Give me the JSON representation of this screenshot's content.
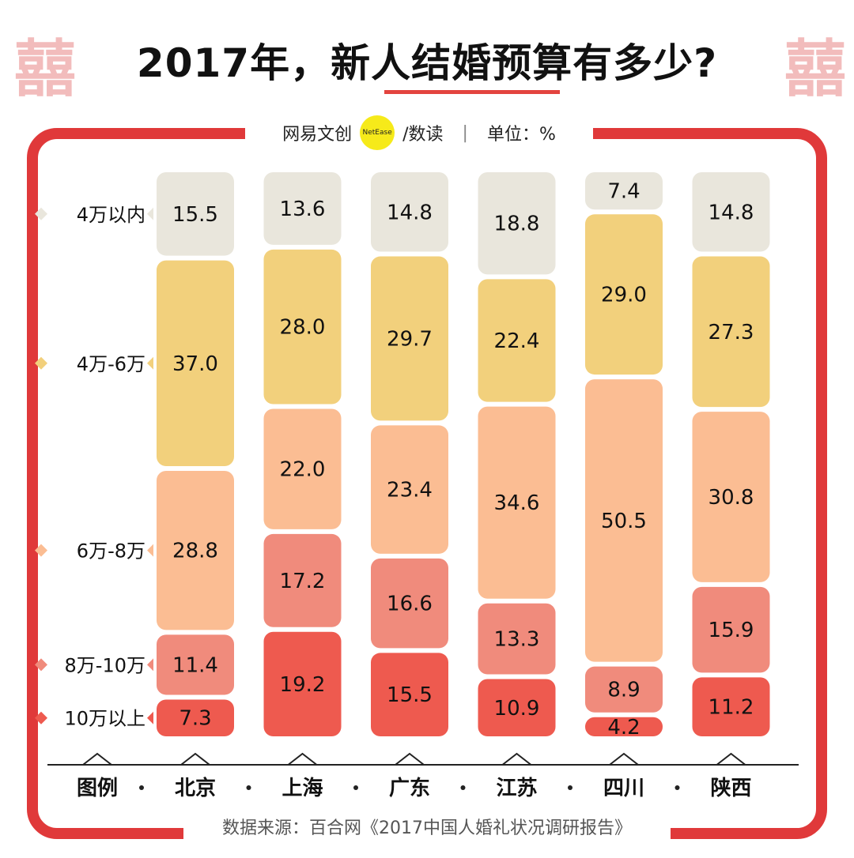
{
  "header": {
    "title": "2017年，新人结婚预算有多少?",
    "decoration_char": "囍",
    "brand": "网易文创",
    "brand_badge": "NetEase",
    "brand_sub": "/数读",
    "unit_label": "单位：%"
  },
  "footer": {
    "source": "数据来源：百合网《2017中国人婚礼状况调研报告》"
  },
  "colors": {
    "frame": "#e0393a",
    "accent": "#e3443f",
    "bands": [
      "#e9e6dc",
      "#f2d07c",
      "#fbbd93",
      "#f08b7c",
      "#ee5a4f"
    ]
  },
  "chart_data": {
    "type": "bar",
    "stacked": true,
    "legend_title": "图例",
    "categories": [
      "北京",
      "上海",
      "广东",
      "江苏",
      "四川",
      "陕西"
    ],
    "series": [
      {
        "name": "4万以内",
        "values": [
          15.5,
          13.6,
          14.8,
          18.8,
          7.4,
          14.8
        ]
      },
      {
        "name": "4万-6万",
        "values": [
          37.0,
          28.0,
          29.7,
          22.4,
          29.0,
          27.3
        ]
      },
      {
        "name": "6万-8万",
        "values": [
          28.8,
          22.0,
          23.4,
          34.6,
          50.5,
          30.8
        ]
      },
      {
        "name": "8万-10万",
        "values": [
          11.4,
          17.2,
          16.6,
          13.3,
          8.9,
          15.9
        ]
      },
      {
        "name": "10万以上",
        "values": [
          7.3,
          19.2,
          15.5,
          10.9,
          4.2,
          11.2
        ]
      }
    ]
  }
}
